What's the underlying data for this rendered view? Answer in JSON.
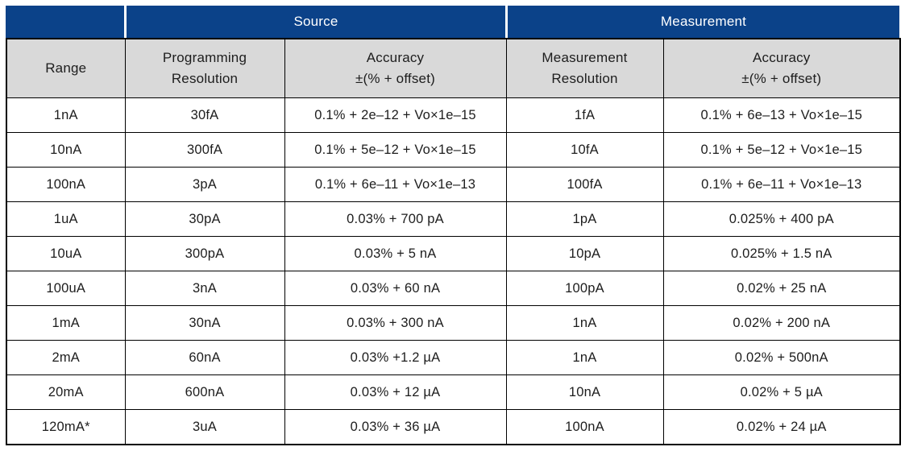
{
  "colors": {
    "header_blue": "#0b4289",
    "header_gray": "#d9d9d9",
    "border_black": "#000000",
    "header_text_white": "#ffffff",
    "body_text": "#1d1d1d"
  },
  "table": {
    "group_headers": [
      {
        "label": "",
        "span": 1
      },
      {
        "label": "Source",
        "span": 2
      },
      {
        "label": "Measurement",
        "span": 2
      }
    ],
    "column_headers": [
      {
        "line1": "Range",
        "line2": ""
      },
      {
        "line1": "Programming",
        "line2": "Resolution"
      },
      {
        "line1": "Accuracy",
        "line2": "±(% + offset)"
      },
      {
        "line1": "Measurement",
        "line2": "Resolution"
      },
      {
        "line1": "Accuracy",
        "line2": "±(% + offset)"
      }
    ],
    "rows": [
      [
        "1nA",
        "30fA",
        "0.1% + 2e–12 + Vo×1e–15",
        "1fA",
        "0.1% + 6e–13 + Vo×1e–15"
      ],
      [
        "10nA",
        "300fA",
        "0.1% + 5e–12 + Vo×1e–15",
        "10fA",
        "0.1% + 5e–12 + Vo×1e–15"
      ],
      [
        "100nA",
        "3pA",
        "0.1% + 6e–11 + Vo×1e–13",
        "100fA",
        "0.1% + 6e–11 + Vo×1e–13"
      ],
      [
        "1uA",
        "30pA",
        "0.03% + 700 pA",
        "1pA",
        "0.025% + 400 pA"
      ],
      [
        "10uA",
        "300pA",
        "0.03% + 5 nA",
        "10pA",
        "0.025% + 1.5 nA"
      ],
      [
        "100uA",
        "3nA",
        "0.03% + 60 nA",
        "100pA",
        "0.02% + 25 nA"
      ],
      [
        "1mA",
        "30nA",
        "0.03% + 300 nA",
        "1nA",
        "0.02% + 200 nA"
      ],
      [
        "2mA",
        "60nA",
        "0.03% +1.2 µA",
        "1nA",
        "0.02% + 500nA"
      ],
      [
        "20mA",
        "600nA",
        "0.03% + 12 µA",
        "10nA",
        "0.02% + 5 µA"
      ],
      [
        "120mA*",
        "3uA",
        "0.03% + 36 µA",
        "100nA",
        "0.02% + 24 µA"
      ]
    ]
  }
}
